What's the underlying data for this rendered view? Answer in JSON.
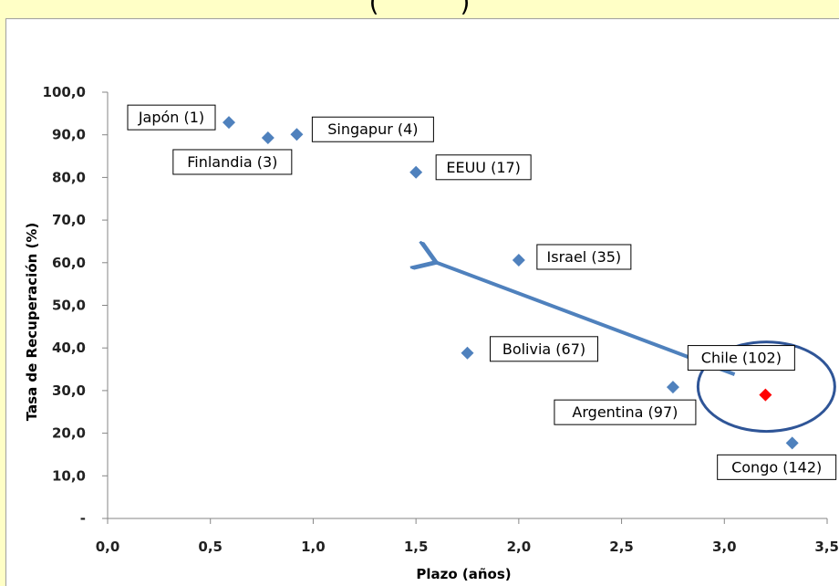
{
  "chart_data": {
    "type": "scatter",
    "title": "(          )",
    "xlabel": "Plazo (años)",
    "ylabel": "Tasa de Recuperación (%)",
    "xlim": [
      0,
      3.5
    ],
    "ylim": [
      0,
      100
    ],
    "x_ticks": [
      "0,0",
      "0,5",
      "1,0",
      "1,5",
      "2,0",
      "2,5",
      "3,0",
      "3,5"
    ],
    "y_ticks": [
      "-",
      "10,0",
      "20,0",
      "30,0",
      "40,0",
      "50,0",
      "60,0",
      "70,0",
      "80,0",
      "90,0",
      "100,0"
    ],
    "grid": false,
    "points": [
      {
        "label": "Japón (1)",
        "x": 0.59,
        "y": 92.9,
        "color": "#4f81bd"
      },
      {
        "label": "Finlandia (3)",
        "x": 0.78,
        "y": 89.3,
        "color": "#4f81bd"
      },
      {
        "label": "Singapur (4)",
        "x": 0.92,
        "y": 90.1,
        "color": "#4f81bd"
      },
      {
        "label": "EEUU (17)",
        "x": 1.5,
        "y": 81.2,
        "color": "#4f81bd"
      },
      {
        "label": "Israel (35)",
        "x": 2.0,
        "y": 60.6,
        "color": "#4f81bd"
      },
      {
        "label": "Bolivia (67)",
        "x": 1.75,
        "y": 38.8,
        "color": "#4f81bd"
      },
      {
        "label": "Argentina (97)",
        "x": 2.75,
        "y": 30.8,
        "color": "#4f81bd"
      },
      {
        "label": "Chile (102)",
        "x": 3.2,
        "y": 29.0,
        "color": "#ff0000"
      },
      {
        "label": "Congo (142)",
        "x": 3.33,
        "y": 17.7,
        "color": "#4f81bd"
      }
    ],
    "annotations": [
      {
        "type": "arrow",
        "from": [
          3.05,
          33.8
        ],
        "to": [
          1.58,
          60.5
        ],
        "color": "#4f81bd"
      },
      {
        "type": "ellipse",
        "around": "Chile (102)",
        "color": "#2f5597"
      }
    ]
  }
}
